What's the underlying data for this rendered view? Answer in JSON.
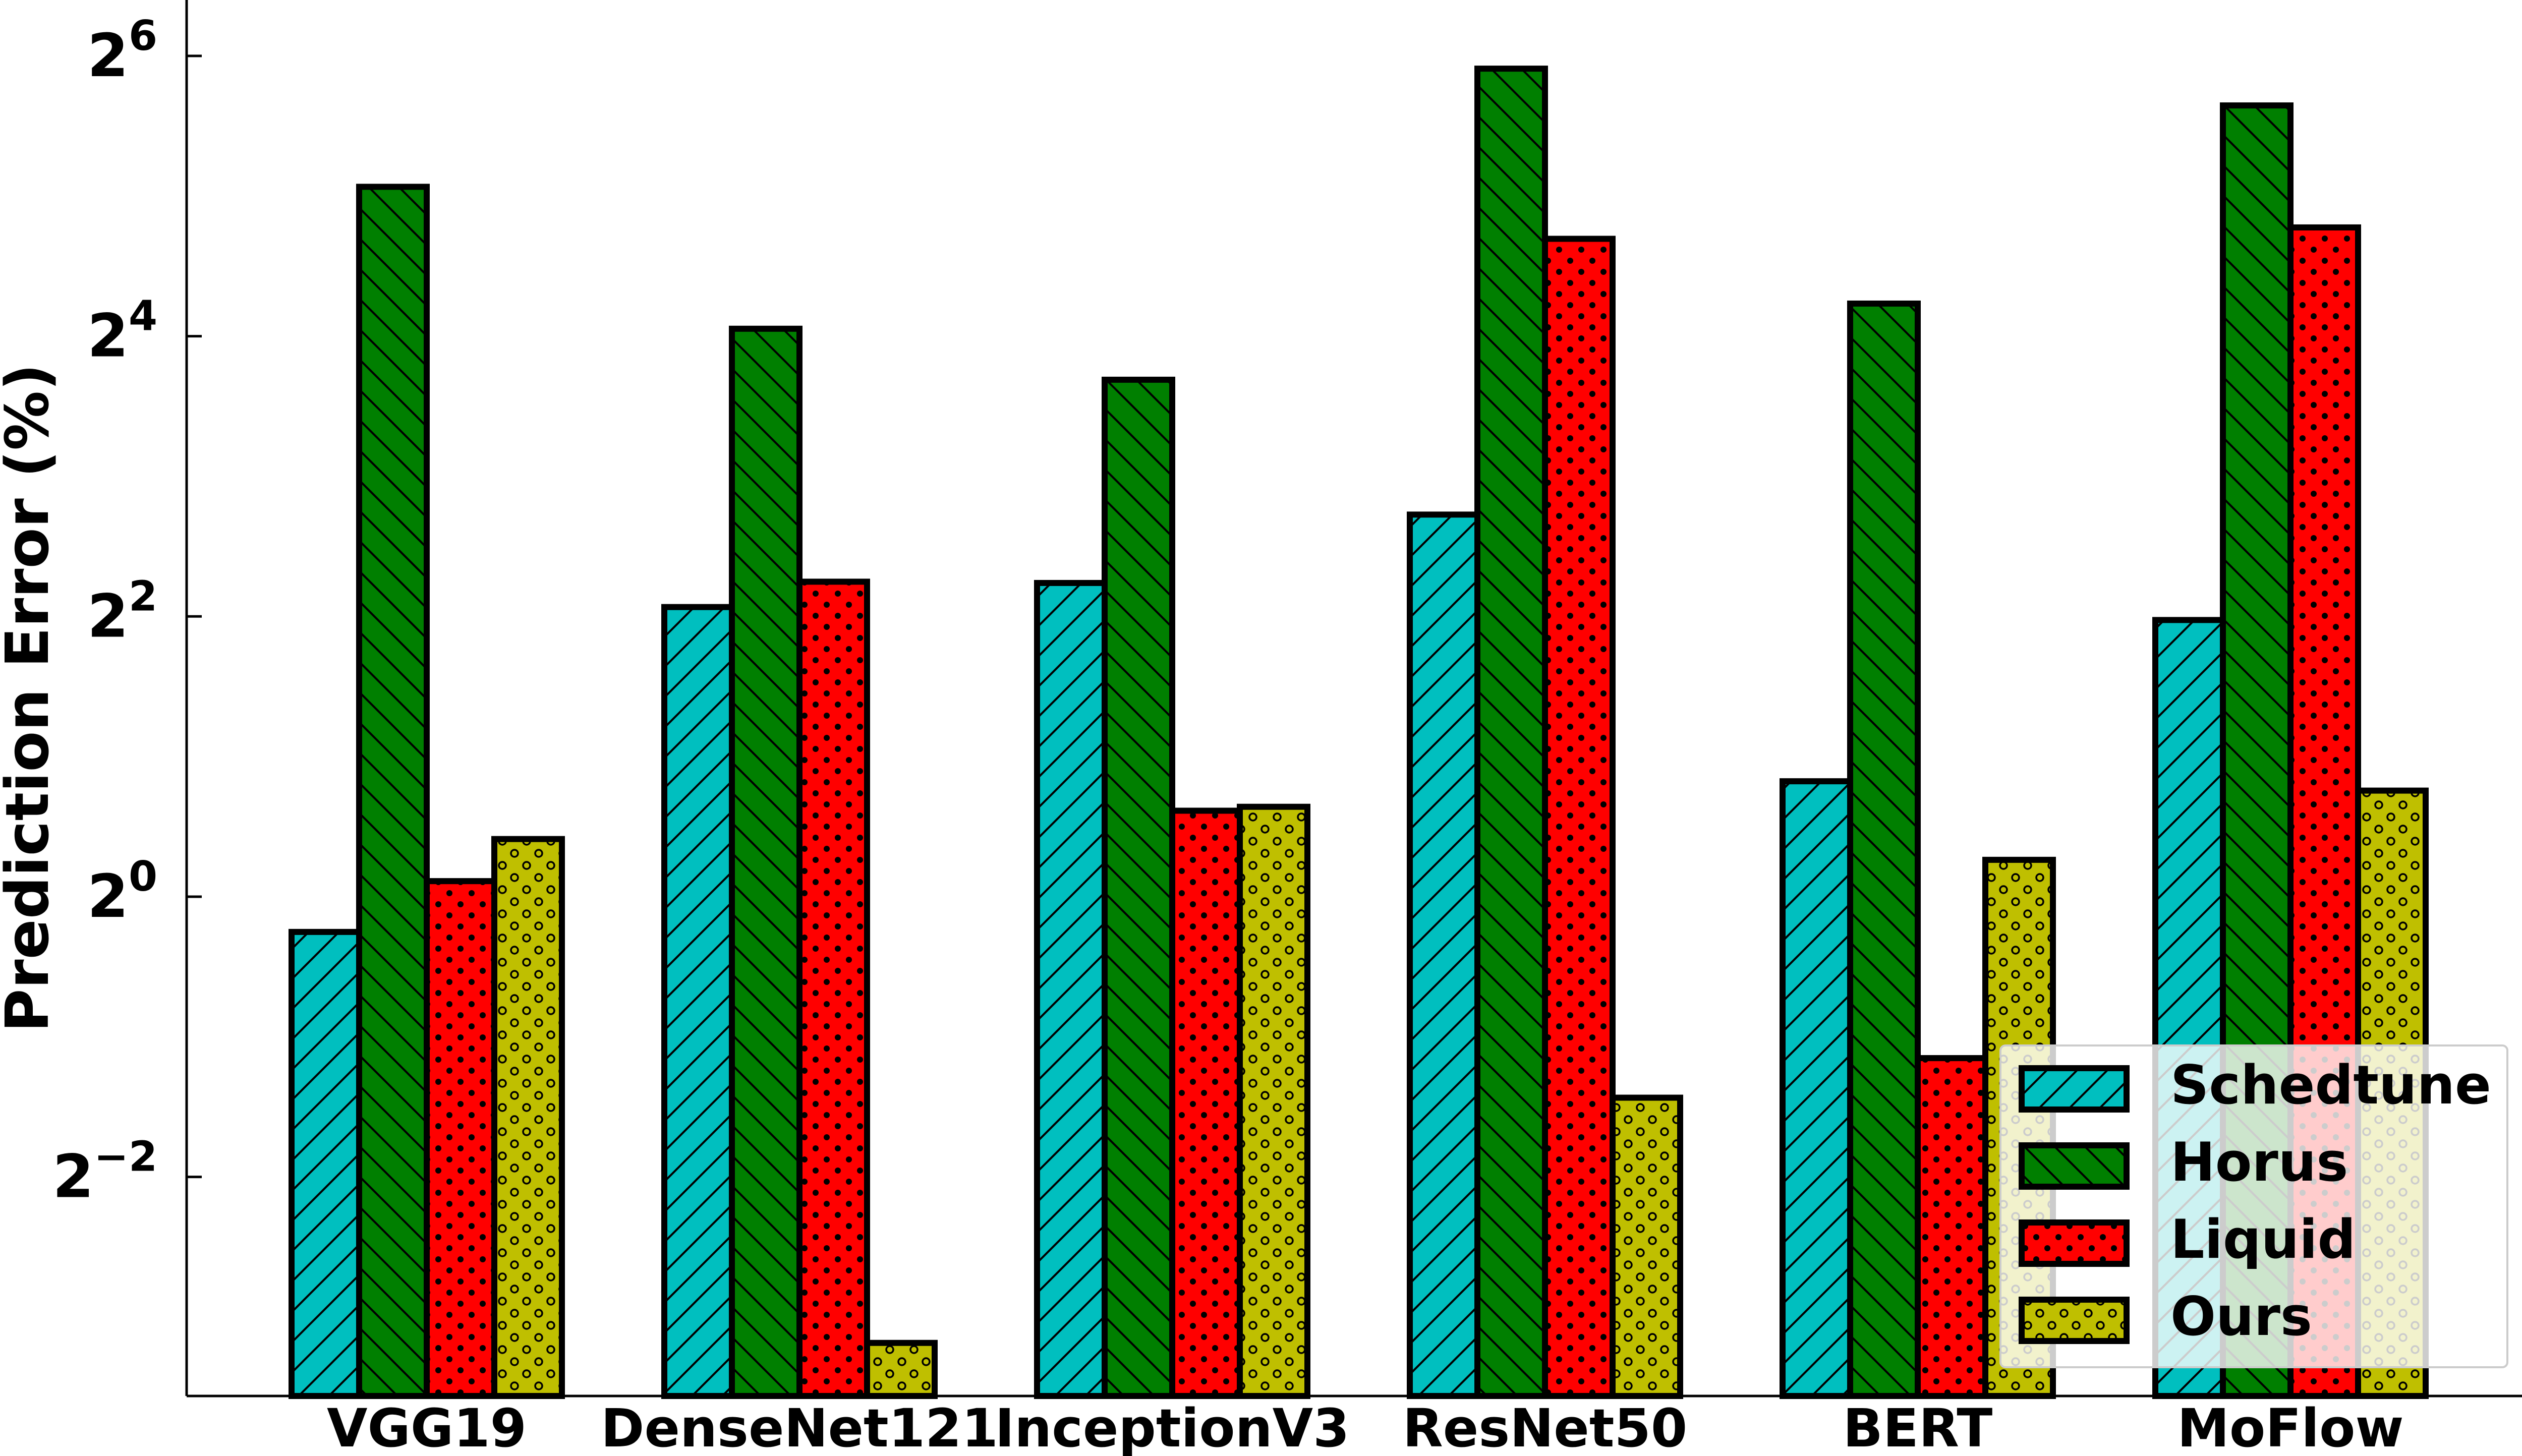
{
  "chart_data": {
    "type": "bar",
    "ylabel": "Prediction Error (%)",
    "yscale": "log2",
    "ylim": [
      0.0846,
      84.4
    ],
    "yticks": [
      {
        "value": 0.25,
        "base": "2",
        "exp": "−2"
      },
      {
        "value": 1,
        "base": "2",
        "exp": "0"
      },
      {
        "value": 4,
        "base": "2",
        "exp": "2"
      },
      {
        "value": 16,
        "base": "2",
        "exp": "4"
      },
      {
        "value": 64,
        "base": "2",
        "exp": "6"
      }
    ],
    "categories": [
      "VGG19",
      "DenseNet121",
      "InceptionV3",
      "ResNet50",
      "BERT",
      "MoFlow"
    ],
    "series": [
      {
        "name": "Schedtune",
        "color": "#00BFBF",
        "hatch": "diagonal-up",
        "values": [
          0.84,
          4.19,
          4.72,
          6.62,
          1.77,
          3.93
        ]
      },
      {
        "name": "Horus",
        "color": "#007F00",
        "hatch": "diagonal-down",
        "values": [
          33.5,
          16.6,
          12.9,
          60.1,
          18.8,
          50.1
        ]
      },
      {
        "name": "Liquid",
        "color": "#FF0000",
        "hatch": "dots",
        "values": [
          1.08,
          4.75,
          1.53,
          25.9,
          0.45,
          27.4
        ]
      },
      {
        "name": "Ours",
        "color": "#BFBF00",
        "hatch": "circles",
        "values": [
          1.33,
          0.11,
          1.56,
          0.37,
          1.2,
          1.69
        ]
      }
    ],
    "legend": "bottom-right",
    "grid": false
  }
}
